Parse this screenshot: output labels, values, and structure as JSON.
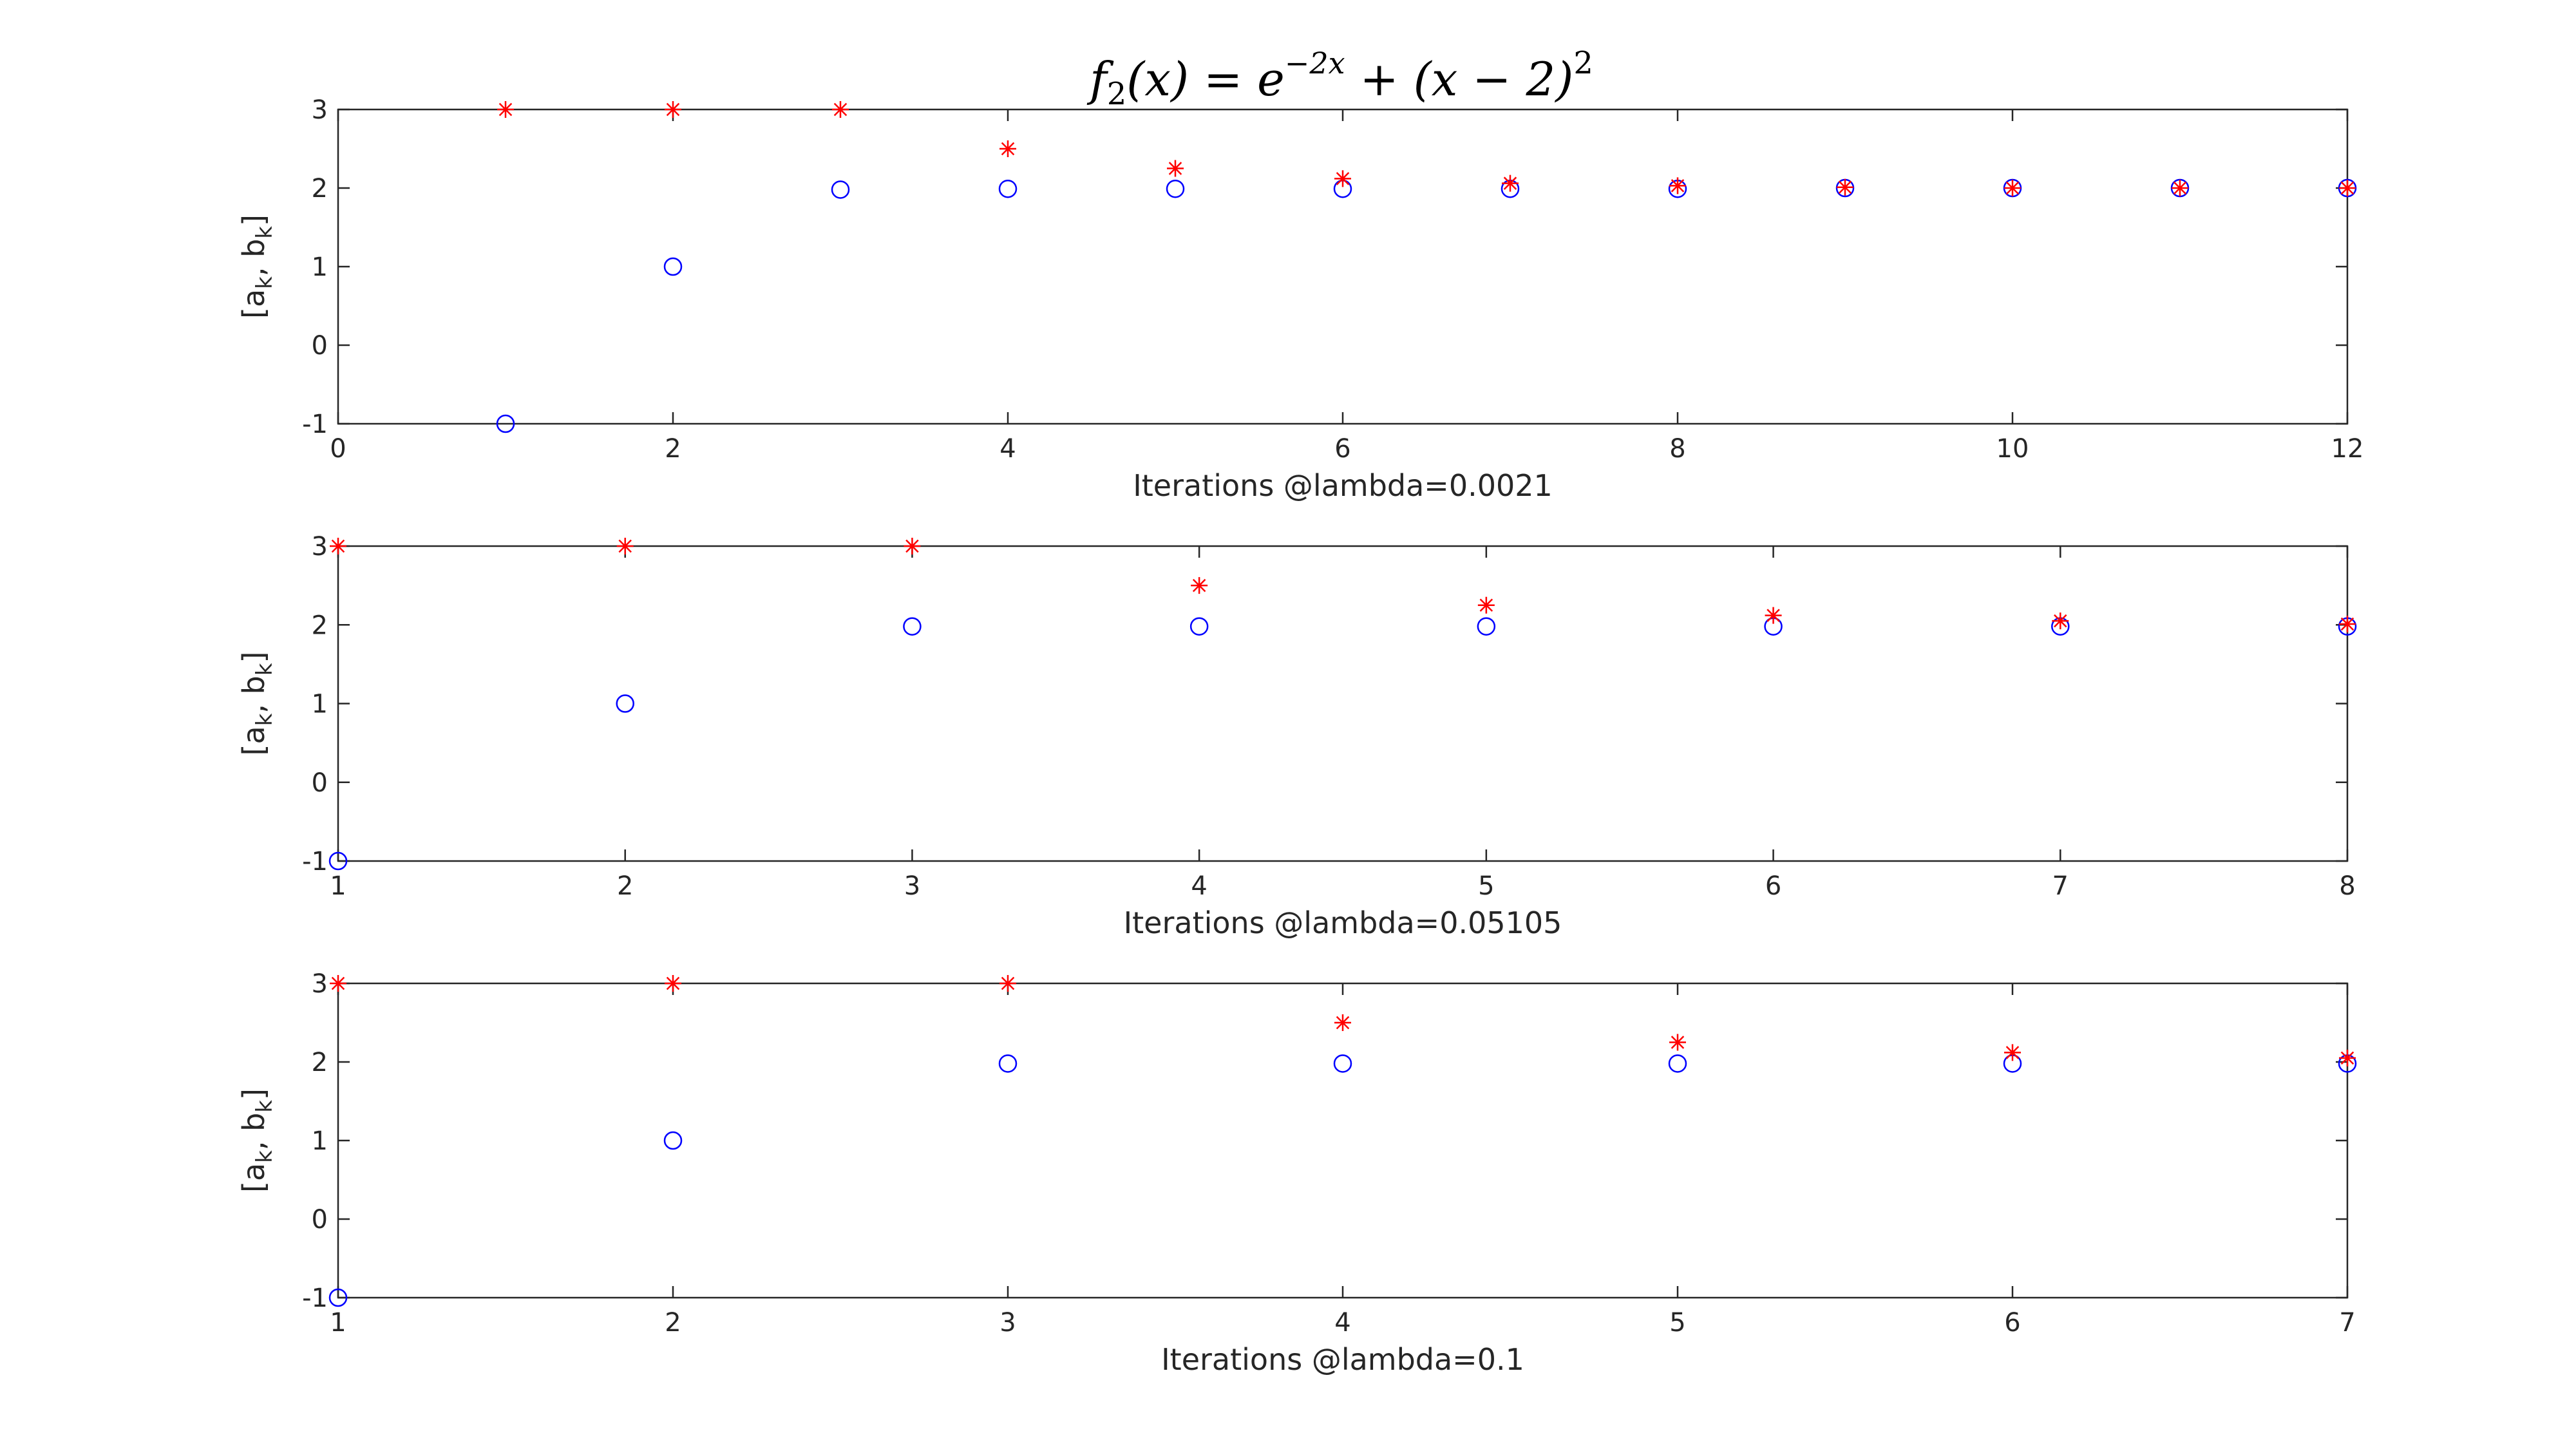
{
  "figure": {
    "title": "f2(x) = e^(-2x) + (x - 2)^2",
    "title_parts": {
      "f": "f",
      "f_sub": "2",
      "arg": "(x) = e",
      "exp": "−2x",
      "rest": " + (x − 2)",
      "rest_sup": "2"
    }
  },
  "colors": {
    "a_series": "#0000ff",
    "b_series": "#ff0000",
    "axes": "#262626"
  },
  "chart_data": [
    {
      "type": "scatter",
      "xlabel": "Iterations @lambda=0.0021",
      "ylabel": {
        "base": "[a",
        "sub1": "k",
        "mid": ", b",
        "sub2": "k",
        "end": "]"
      },
      "xlim": [
        0,
        12
      ],
      "ylim": [
        -1,
        3
      ],
      "xticks": [
        0,
        2,
        4,
        6,
        8,
        10,
        12
      ],
      "yticks": [
        -1,
        0,
        1,
        2,
        3
      ],
      "grid": false,
      "series": [
        {
          "marker": "circle",
          "color": "#0000ff",
          "x": [
            1,
            2,
            3,
            4,
            5,
            6,
            7,
            8,
            9,
            10,
            11,
            12
          ],
          "y": [
            -1,
            1,
            1.98,
            1.99,
            1.99,
            1.99,
            1.99,
            1.99,
            2.0,
            2.0,
            2.0,
            2.0
          ]
        },
        {
          "marker": "star",
          "color": "#ff0000",
          "x": [
            1,
            2,
            3,
            4,
            5,
            6,
            7,
            8,
            9,
            10,
            11,
            12
          ],
          "y": [
            3,
            3,
            3,
            2.5,
            2.25,
            2.12,
            2.06,
            2.03,
            2.01,
            2.0,
            2.0,
            2.0
          ]
        }
      ]
    },
    {
      "type": "scatter",
      "xlabel": "Iterations @lambda=0.05105",
      "ylabel": {
        "base": "[a",
        "sub1": "k",
        "mid": ", b",
        "sub2": "k",
        "end": "]"
      },
      "xlim": [
        1,
        8
      ],
      "ylim": [
        -1,
        3
      ],
      "xticks": [
        1,
        2,
        3,
        4,
        5,
        6,
        7,
        8
      ],
      "yticks": [
        -1,
        0,
        1,
        2,
        3
      ],
      "grid": false,
      "series": [
        {
          "marker": "circle",
          "color": "#0000ff",
          "x": [
            1,
            2,
            3,
            4,
            5,
            6,
            7,
            8
          ],
          "y": [
            -1,
            1,
            1.98,
            1.98,
            1.98,
            1.98,
            1.98,
            1.98
          ]
        },
        {
          "marker": "star",
          "color": "#ff0000",
          "x": [
            1,
            2,
            3,
            4,
            5,
            6,
            7,
            8
          ],
          "y": [
            3,
            3,
            3,
            2.5,
            2.25,
            2.12,
            2.05,
            2.01
          ]
        }
      ]
    },
    {
      "type": "scatter",
      "xlabel": "Iterations @lambda=0.1",
      "ylabel": {
        "base": "[a",
        "sub1": "k",
        "mid": ", b",
        "sub2": "k",
        "end": "]"
      },
      "xlim": [
        1,
        7
      ],
      "ylim": [
        -1,
        3
      ],
      "xticks": [
        1,
        2,
        3,
        4,
        5,
        6,
        7
      ],
      "yticks": [
        -1,
        0,
        1,
        2,
        3
      ],
      "grid": false,
      "series": [
        {
          "marker": "circle",
          "color": "#0000ff",
          "x": [
            1,
            2,
            3,
            4,
            5,
            6,
            7
          ],
          "y": [
            -1,
            1,
            1.98,
            1.98,
            1.98,
            1.98,
            1.98
          ]
        },
        {
          "marker": "star",
          "color": "#ff0000",
          "x": [
            1,
            2,
            3,
            4,
            5,
            6,
            7
          ],
          "y": [
            3,
            3,
            3,
            2.5,
            2.25,
            2.12,
            2.05
          ]
        }
      ]
    }
  ]
}
